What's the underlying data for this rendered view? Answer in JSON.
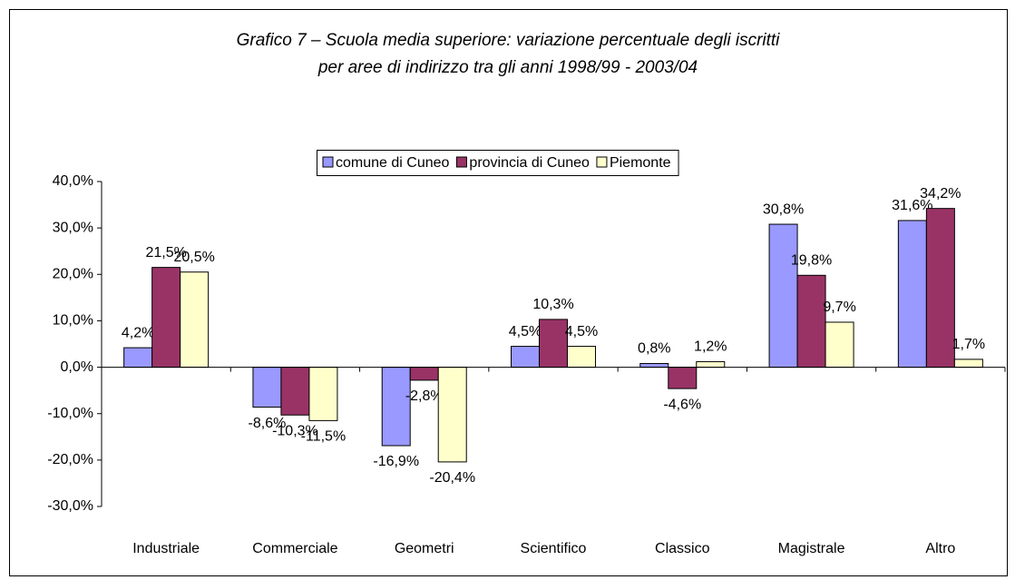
{
  "chart_data": {
    "type": "bar",
    "title": [
      "Grafico 7 – Scuola media superiore: variazione percentuale degli iscritti",
      "per aree di indirizzo tra gli anni 1998/99 - 2003/04"
    ],
    "categories": [
      "Industriale",
      "Commerciale",
      "Geometri",
      "Scientifico",
      "Classico",
      "Magistrale",
      "Altro"
    ],
    "series": [
      {
        "name": "comune di Cuneo",
        "color": "#9999ff",
        "values": [
          4.2,
          -8.6,
          -16.9,
          4.5,
          0.8,
          30.8,
          31.6
        ],
        "value_labels": [
          "4,2%",
          "-8,6%",
          "-16,9%",
          "4,5%",
          "0,8%",
          "30,8%",
          "31,6%"
        ]
      },
      {
        "name": "provincia di Cuneo",
        "color": "#993366",
        "values": [
          21.5,
          -10.3,
          -2.8,
          10.3,
          -4.6,
          19.8,
          34.2
        ],
        "value_labels": [
          "21,5%",
          "-10,3%",
          "-2,8%",
          "10,3%",
          "-4,6%",
          "19,8%",
          "34,2%"
        ]
      },
      {
        "name": "Piemonte",
        "color": "#ffffcc",
        "values": [
          20.5,
          -11.5,
          -20.4,
          4.5,
          1.2,
          9.7,
          1.7
        ],
        "value_labels": [
          "20,5%",
          "-11,5%",
          "-20,4%",
          "4,5%",
          "1,2%",
          "9,7%",
          "1,7%"
        ]
      }
    ],
    "ylim": [
      -30,
      40
    ],
    "yticks": [
      {
        "value": -30,
        "label": "-30,0%"
      },
      {
        "value": -20,
        "label": "-20,0%"
      },
      {
        "value": -10,
        "label": "-10,0%"
      },
      {
        "value": 0,
        "label": "0,0%"
      },
      {
        "value": 10,
        "label": "10,0%"
      },
      {
        "value": 20,
        "label": "20,0%"
      },
      {
        "value": 30,
        "label": "30,0%"
      },
      {
        "value": 40,
        "label": "40,0%"
      }
    ],
    "grid": false,
    "legend": "top"
  }
}
